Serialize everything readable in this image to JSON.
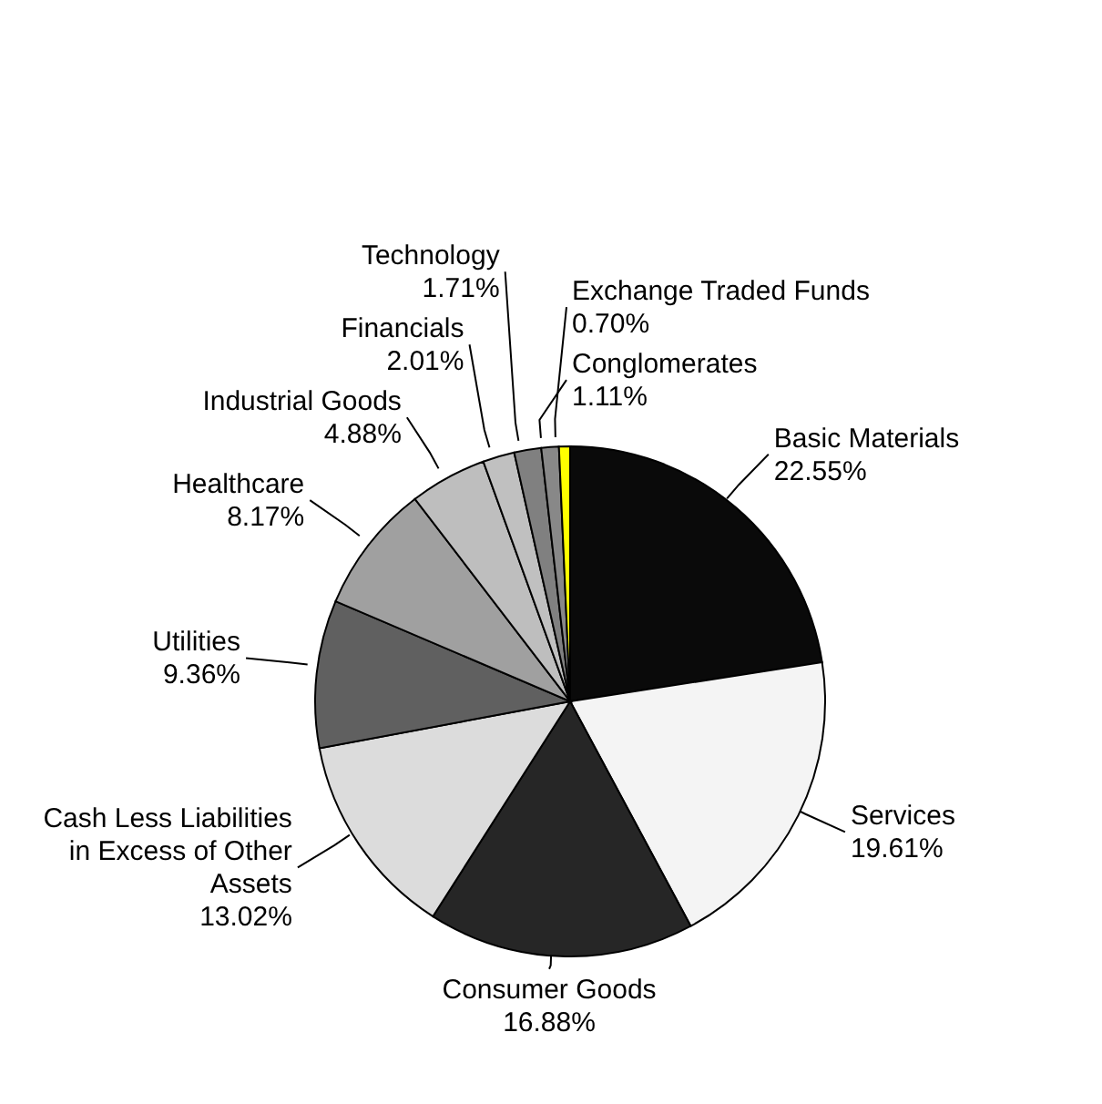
{
  "chart_data": {
    "type": "pie",
    "categories": [
      "Basic Materials",
      "Services",
      "Consumer Goods",
      "Cash Less Liabilities in Excess of Other Assets",
      "Utilities",
      "Healthcare",
      "Industrial Goods",
      "Financials",
      "Technology",
      "Conglomerates",
      "Exchange Traded Funds"
    ],
    "values": [
      22.55,
      19.61,
      16.88,
      13.02,
      9.36,
      8.17,
      4.88,
      2.01,
      1.71,
      1.11,
      0.7
    ],
    "value_labels": [
      "22.55%",
      "19.61%",
      "16.88%",
      "13.02%",
      "9.36%",
      "8.17%",
      "4.88%",
      "2.01%",
      "1.71%",
      "1.11%",
      "0.70%"
    ],
    "colors": [
      "#0a0a0a",
      "#f4f4f4",
      "#262626",
      "#dcdcdc",
      "#606060",
      "#a0a0a0",
      "#bebebe",
      "#c0c0c0",
      "#808080",
      "#888888",
      "#ffff00"
    ],
    "legend": false
  }
}
